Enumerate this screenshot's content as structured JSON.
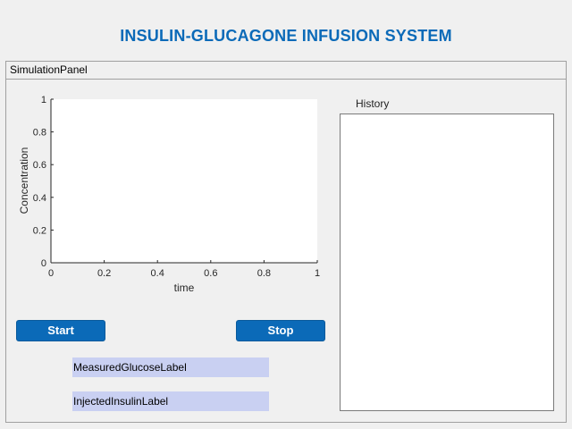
{
  "app": {
    "title": "INSULIN-GLUCAGONE INFUSION SYSTEM"
  },
  "panel": {
    "title": "SimulationPanel"
  },
  "chart_data": {
    "type": "line",
    "xlabel": "time",
    "ylabel": "Concentration",
    "xlim": [
      0,
      1
    ],
    "ylim": [
      0,
      1
    ],
    "xticks": [
      "0",
      "0.2",
      "0.4",
      "0.6",
      "0.8",
      "1"
    ],
    "yticks": [
      "0",
      "0.2",
      "0.4",
      "0.6",
      "0.8",
      "1"
    ],
    "series": [],
    "grid": false
  },
  "controls": {
    "start_label": "Start",
    "stop_label": "Stop"
  },
  "labels": {
    "measured_glucose": "MeasuredGlucoseLabel",
    "injected_insulin": "InjectedInsulinLabel"
  },
  "history": {
    "title": "History",
    "entries": []
  },
  "colors": {
    "accent": "#0b6ab8",
    "label_background": "#c9d0f2"
  }
}
